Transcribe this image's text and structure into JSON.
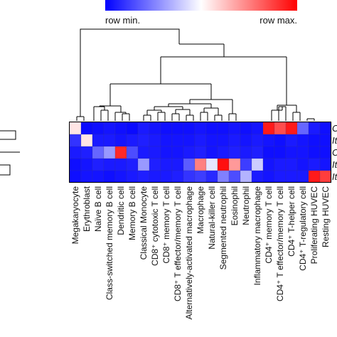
{
  "legend": {
    "min_label": "row min.",
    "max_label": "row max."
  },
  "colors": {
    "low": "#0000ff",
    "mid": "#ffffff",
    "high": "#ff0000"
  },
  "chart_data": {
    "type": "heatmap",
    "color_scale": "row-normalized blue-white-red",
    "columns": [
      "Megakaryocyte",
      "Erythroblast",
      "Naïve B cell",
      "Class-switched memory B cell",
      "Dendritic cell",
      "Memory B cell",
      "Classical Monocyte",
      "CD8⁺ cytotoxic T cell",
      "CD8⁺ memory T cell",
      "CD8⁺ T effector/memory T cell",
      "Alternatively-activated macrophage",
      "Macrophage",
      "Natural-killer cell",
      "Segmented neutrophil",
      "Eosinophil",
      "Neutrophil",
      "Inflammatory macrophage",
      "CD4⁺ memory T cell",
      "CD4⁺ T effector/memory T cell",
      "CD4⁺ T-helper cell",
      "CD4⁺ T-regulatory cell",
      "Proliferating HUVEC",
      "Resting HUVEC"
    ],
    "row_labels": [
      "C",
      "It",
      "C",
      "It",
      "It"
    ],
    "values": [
      [
        0.55,
        0.02,
        0.03,
        0.04,
        0.03,
        0.02,
        0.05,
        0.04,
        0.03,
        0.03,
        0.03,
        0.04,
        0.03,
        0.03,
        0.04,
        0.03,
        0.04,
        0.95,
        0.85,
        0.95,
        0.2,
        0.05,
        0.03
      ],
      [
        0.1,
        0.55,
        0.05,
        0.05,
        0.04,
        0.05,
        0.06,
        0.05,
        0.04,
        0.04,
        0.04,
        0.05,
        0.04,
        0.04,
        0.05,
        0.04,
        0.05,
        0.04,
        0.03,
        0.05,
        0.04,
        0.03,
        0.03
      ],
      [
        0.05,
        0.06,
        0.2,
        0.3,
        0.92,
        0.15,
        0.05,
        0.05,
        0.04,
        0.04,
        0.05,
        0.06,
        0.04,
        0.05,
        0.06,
        0.05,
        0.06,
        0.03,
        0.03,
        0.04,
        0.04,
        0.03,
        0.03
      ],
      [
        0.03,
        0.04,
        0.06,
        0.05,
        0.05,
        0.06,
        0.3,
        0.06,
        0.05,
        0.05,
        0.18,
        0.75,
        0.45,
        0.97,
        0.7,
        0.12,
        0.4,
        0.04,
        0.05,
        0.05,
        0.04,
        0.05,
        0.04
      ],
      [
        0.03,
        0.04,
        0.04,
        0.03,
        0.04,
        0.05,
        0.06,
        0.05,
        0.05,
        0.06,
        0.1,
        0.12,
        0.08,
        0.25,
        0.15,
        0.35,
        0.05,
        0.04,
        0.05,
        0.05,
        0.05,
        0.95,
        0.88
      ]
    ]
  }
}
